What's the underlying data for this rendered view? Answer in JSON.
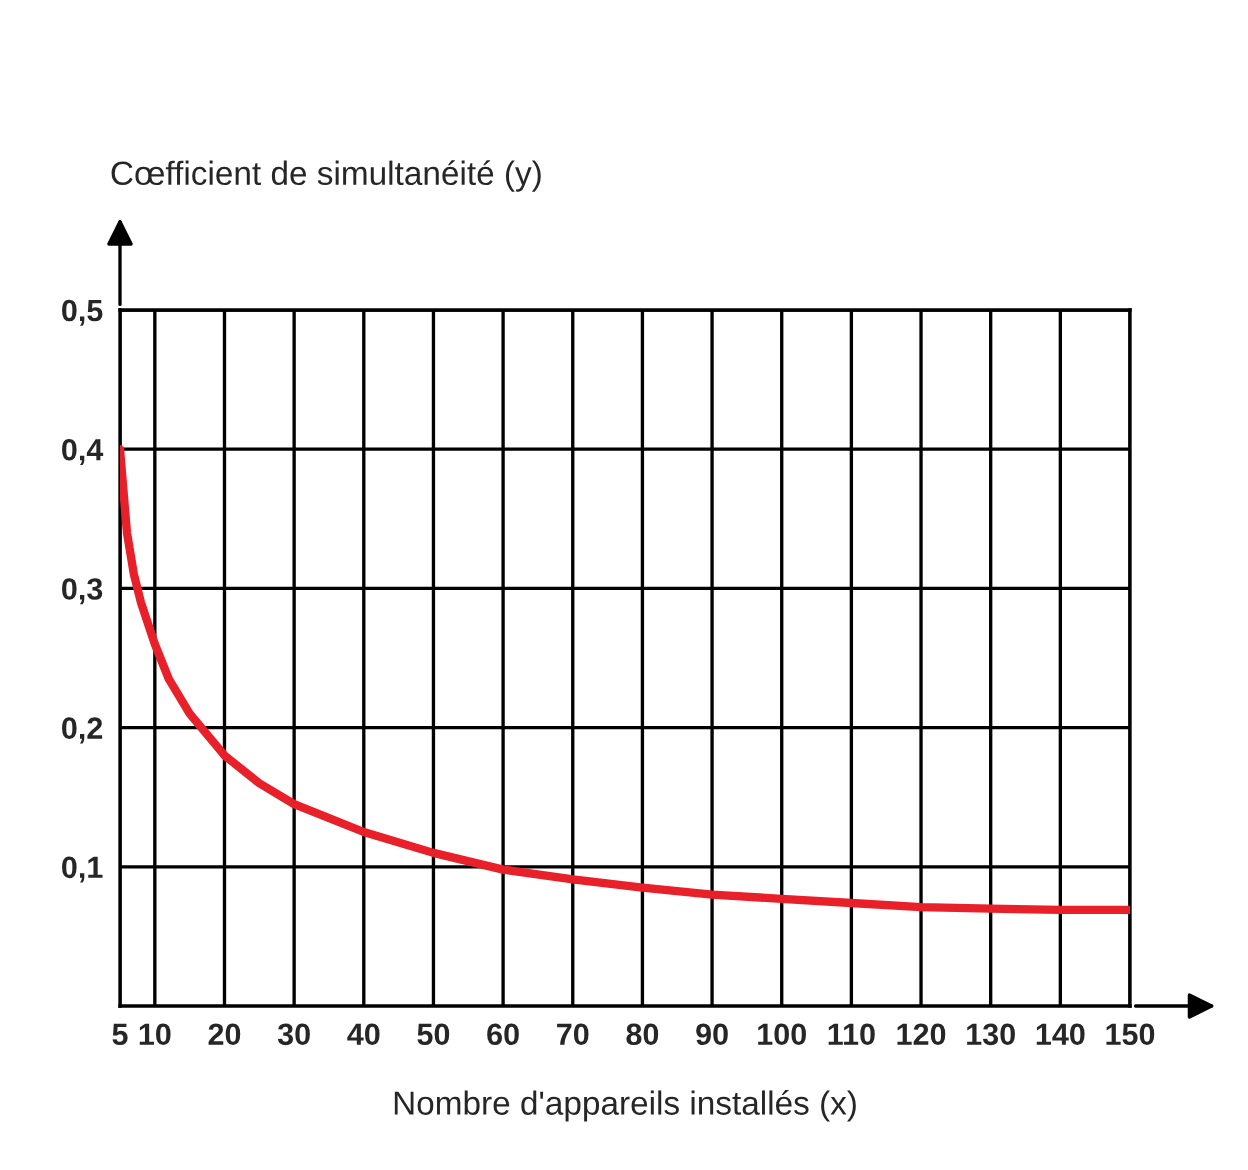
{
  "chart_data": {
    "type": "line",
    "xlabel": "Nombre d'appareils installés (x)",
    "ylabel": "Cœfficient de simultanéité (y)",
    "x": [
      5,
      6,
      7,
      8,
      10,
      12,
      15,
      20,
      25,
      30,
      40,
      50,
      60,
      70,
      80,
      90,
      100,
      110,
      120,
      130,
      140,
      150
    ],
    "series": [
      {
        "color": "#e8202a",
        "values": [
          0.4,
          0.34,
          0.31,
          0.29,
          0.26,
          0.235,
          0.21,
          0.18,
          0.16,
          0.145,
          0.125,
          0.11,
          0.098,
          0.091,
          0.085,
          0.08,
          0.077,
          0.074,
          0.071,
          0.07,
          0.069,
          0.069
        ]
      }
    ],
    "xlim": [
      5,
      150
    ],
    "ylim": [
      0,
      0.5
    ],
    "xticks": [
      5,
      10,
      20,
      30,
      40,
      50,
      60,
      70,
      80,
      90,
      100,
      110,
      120,
      130,
      140,
      150
    ],
    "yticks": [
      {
        "value": 0.1,
        "label": "0,1"
      },
      {
        "value": 0.2,
        "label": "0,2"
      },
      {
        "value": 0.3,
        "label": "0,3"
      },
      {
        "value": 0.4,
        "label": "0,4"
      },
      {
        "value": 0.5,
        "label": "0,5"
      }
    ],
    "grid": true,
    "marker": "none",
    "line_style": "solid"
  }
}
